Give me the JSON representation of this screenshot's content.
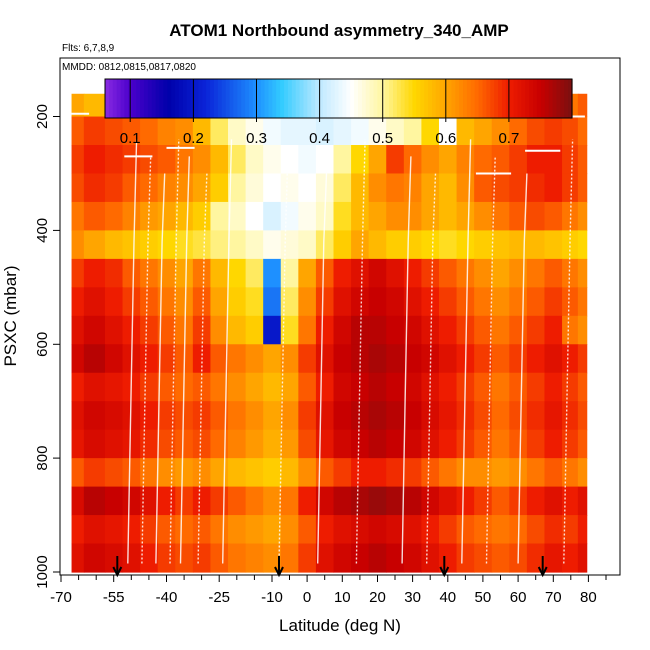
{
  "chart_data": {
    "type": "heatmap",
    "title": "ATOM1 Northbound asymmetry_340_AMP",
    "subtitle_flights": "Flts: 6,7,8,9",
    "subtitle_dates": "MMDD: 0812,0815,0817,0820",
    "xlabel": "Latitude (deg N)",
    "ylabel": "PSXC (mbar)",
    "xlim": [
      -70,
      85
    ],
    "ylim": [
      1000,
      120
    ],
    "x_ticks": [
      -70,
      -55,
      -40,
      -25,
      -10,
      0,
      10,
      20,
      30,
      40,
      50,
      60,
      70,
      80
    ],
    "x_tick_labels": [
      "-70",
      "-55",
      "-40",
      "-25",
      "-10",
      "0",
      "10",
      "20",
      "30",
      "40",
      "50",
      "60",
      "70",
      "80"
    ],
    "x_minor_ticks": [
      -65,
      -60,
      -50,
      -45,
      -35,
      -30,
      -20,
      -15,
      -5,
      5,
      15,
      25,
      35,
      45,
      55,
      65,
      75,
      85
    ],
    "y_ticks": [
      200,
      400,
      600,
      800,
      1000
    ],
    "y_tick_labels": [
      "200",
      "400",
      "600",
      "800",
      "1000"
    ],
    "colorbar": {
      "range": [
        0.06,
        0.8
      ],
      "ticks": [
        0.1,
        0.2,
        0.3,
        0.4,
        0.5,
        0.6,
        0.7
      ],
      "tick_labels": [
        "0.1",
        "0.2",
        "0.3",
        "0.4",
        "0.5",
        "0.6",
        "0.7"
      ],
      "stops": [
        {
          "v": 0.06,
          "c": "#8a2be2"
        },
        {
          "v": 0.1,
          "c": "#4b00cc"
        },
        {
          "v": 0.16,
          "c": "#0000aa"
        },
        {
          "v": 0.22,
          "c": "#0a24d8"
        },
        {
          "v": 0.3,
          "c": "#1e90ff"
        },
        {
          "v": 0.34,
          "c": "#33ccff"
        },
        {
          "v": 0.4,
          "c": "#bfe9ff"
        },
        {
          "v": 0.45,
          "c": "#ffffff"
        },
        {
          "v": 0.5,
          "c": "#fff6a0"
        },
        {
          "v": 0.55,
          "c": "#ffd700"
        },
        {
          "v": 0.6,
          "c": "#ffa500"
        },
        {
          "v": 0.65,
          "c": "#ff6a00"
        },
        {
          "v": 0.7,
          "c": "#ee1c00"
        },
        {
          "v": 0.75,
          "c": "#c80000"
        },
        {
          "v": 0.8,
          "c": "#7a1010"
        }
      ]
    },
    "lat_bins": [
      -67,
      -60,
      -55,
      -50,
      -45,
      -40,
      -35,
      -30,
      -25,
      -20,
      -15,
      -10,
      -5,
      0,
      5,
      10,
      15,
      20,
      25,
      30,
      35,
      40,
      45,
      50,
      55,
      60,
      65,
      70,
      75,
      79
    ],
    "pressure_levels": [
      175,
      225,
      275,
      325,
      375,
      425,
      475,
      525,
      575,
      625,
      675,
      725,
      775,
      825,
      875,
      925,
      975
    ],
    "values_by_level": [
      [
        0.6,
        0.58,
        0.57,
        0.56,
        0.55,
        0.54,
        0.53,
        0.52,
        0.5,
        0.48,
        0.46,
        0.45,
        0.44,
        0.44,
        0.43,
        0.44,
        0.45,
        0.46,
        0.47,
        0.48,
        0.49,
        0.5,
        0.52,
        0.54,
        0.56,
        0.58,
        0.6,
        0.62,
        0.64,
        0.66
      ],
      [
        0.66,
        0.68,
        0.67,
        0.66,
        0.65,
        0.63,
        0.62,
        0.58,
        0.52,
        0.48,
        0.46,
        0.44,
        0.43,
        0.43,
        0.42,
        0.43,
        0.44,
        0.46,
        0.48,
        0.5,
        0.55,
        0.45,
        0.58,
        0.6,
        0.62,
        0.65,
        0.67,
        0.68,
        0.67,
        0.65
      ],
      [
        0.68,
        0.7,
        0.69,
        0.68,
        0.67,
        0.66,
        0.64,
        0.62,
        0.58,
        0.52,
        0.48,
        0.46,
        0.45,
        0.44,
        0.45,
        0.5,
        0.55,
        0.6,
        0.68,
        0.65,
        0.62,
        0.6,
        0.63,
        0.65,
        0.66,
        0.68,
        0.7,
        0.7,
        0.68,
        0.66
      ],
      [
        0.67,
        0.69,
        0.68,
        0.66,
        0.65,
        0.63,
        0.62,
        0.6,
        0.56,
        0.5,
        0.47,
        0.45,
        0.46,
        0.45,
        0.47,
        0.52,
        0.58,
        0.62,
        0.64,
        0.63,
        0.6,
        0.58,
        0.62,
        0.66,
        0.67,
        0.68,
        0.69,
        0.7,
        0.68,
        0.66
      ],
      [
        0.64,
        0.66,
        0.65,
        0.63,
        0.61,
        0.6,
        0.58,
        0.56,
        0.5,
        0.48,
        0.45,
        0.42,
        0.44,
        0.46,
        0.48,
        0.54,
        0.58,
        0.6,
        0.62,
        0.62,
        0.6,
        0.58,
        0.6,
        0.62,
        0.64,
        0.66,
        0.67,
        0.66,
        0.64,
        0.62
      ],
      [
        0.62,
        0.6,
        0.58,
        0.57,
        0.56,
        0.55,
        0.54,
        0.53,
        0.51,
        0.5,
        0.48,
        0.46,
        0.47,
        0.48,
        0.52,
        0.56,
        0.6,
        0.58,
        0.56,
        0.56,
        0.55,
        0.54,
        0.55,
        0.56,
        0.57,
        0.58,
        0.58,
        0.57,
        0.56,
        0.55
      ],
      [
        0.68,
        0.7,
        0.69,
        0.66,
        0.64,
        0.62,
        0.6,
        0.64,
        0.58,
        0.55,
        0.52,
        0.3,
        0.5,
        0.6,
        0.66,
        0.7,
        0.72,
        0.74,
        0.72,
        0.7,
        0.68,
        0.66,
        0.64,
        0.62,
        0.6,
        0.62,
        0.64,
        0.66,
        0.64,
        0.62
      ],
      [
        0.7,
        0.72,
        0.7,
        0.68,
        0.66,
        0.64,
        0.62,
        0.66,
        0.6,
        0.56,
        0.54,
        0.28,
        0.52,
        0.62,
        0.68,
        0.72,
        0.74,
        0.75,
        0.74,
        0.72,
        0.7,
        0.68,
        0.66,
        0.64,
        0.62,
        0.64,
        0.66,
        0.68,
        0.66,
        0.64
      ],
      [
        0.72,
        0.74,
        0.72,
        0.7,
        0.68,
        0.66,
        0.64,
        0.68,
        0.62,
        0.58,
        0.56,
        0.2,
        0.54,
        0.64,
        0.7,
        0.74,
        0.76,
        0.76,
        0.75,
        0.74,
        0.72,
        0.7,
        0.68,
        0.66,
        0.64,
        0.66,
        0.68,
        0.7,
        0.64,
        0.62
      ],
      [
        0.74,
        0.76,
        0.74,
        0.72,
        0.7,
        0.68,
        0.66,
        0.7,
        0.66,
        0.64,
        0.62,
        0.6,
        0.62,
        0.68,
        0.72,
        0.75,
        0.76,
        0.77,
        0.76,
        0.75,
        0.74,
        0.72,
        0.7,
        0.68,
        0.66,
        0.68,
        0.7,
        0.72,
        0.7,
        0.68
      ],
      [
        0.7,
        0.72,
        0.71,
        0.7,
        0.68,
        0.66,
        0.65,
        0.66,
        0.64,
        0.62,
        0.6,
        0.58,
        0.6,
        0.66,
        0.7,
        0.74,
        0.75,
        0.76,
        0.75,
        0.74,
        0.72,
        0.7,
        0.68,
        0.66,
        0.64,
        0.66,
        0.68,
        0.7,
        0.68,
        0.66
      ],
      [
        0.72,
        0.74,
        0.73,
        0.72,
        0.7,
        0.68,
        0.67,
        0.68,
        0.66,
        0.64,
        0.62,
        0.6,
        0.62,
        0.68,
        0.72,
        0.75,
        0.76,
        0.77,
        0.76,
        0.75,
        0.73,
        0.71,
        0.69,
        0.67,
        0.65,
        0.67,
        0.69,
        0.71,
        0.69,
        0.67
      ],
      [
        0.71,
        0.73,
        0.72,
        0.71,
        0.69,
        0.67,
        0.66,
        0.67,
        0.65,
        0.63,
        0.61,
        0.59,
        0.61,
        0.67,
        0.71,
        0.74,
        0.75,
        0.76,
        0.75,
        0.74,
        0.72,
        0.7,
        0.68,
        0.66,
        0.64,
        0.66,
        0.68,
        0.7,
        0.68,
        0.66
      ],
      [
        0.66,
        0.68,
        0.67,
        0.66,
        0.64,
        0.62,
        0.61,
        0.62,
        0.6,
        0.58,
        0.57,
        0.56,
        0.58,
        0.62,
        0.66,
        0.68,
        0.7,
        0.7,
        0.69,
        0.68,
        0.66,
        0.64,
        0.62,
        0.62,
        0.61,
        0.62,
        0.64,
        0.66,
        0.64,
        0.62
      ],
      [
        0.73,
        0.76,
        0.75,
        0.74,
        0.72,
        0.7,
        0.68,
        0.7,
        0.68,
        0.66,
        0.64,
        0.62,
        0.64,
        0.7,
        0.74,
        0.76,
        0.77,
        0.78,
        0.77,
        0.76,
        0.74,
        0.72,
        0.7,
        0.68,
        0.66,
        0.68,
        0.7,
        0.72,
        0.7,
        0.72
      ],
      [
        0.7,
        0.72,
        0.71,
        0.7,
        0.68,
        0.66,
        0.65,
        0.66,
        0.64,
        0.62,
        0.61,
        0.6,
        0.62,
        0.66,
        0.7,
        0.72,
        0.73,
        0.74,
        0.73,
        0.72,
        0.7,
        0.68,
        0.66,
        0.65,
        0.64,
        0.65,
        0.67,
        0.69,
        0.68,
        0.7
      ],
      [
        0.72,
        0.74,
        0.73,
        0.72,
        0.7,
        0.68,
        0.67,
        0.68,
        0.66,
        0.64,
        0.63,
        0.62,
        0.64,
        0.68,
        0.72,
        0.74,
        0.75,
        0.76,
        0.75,
        0.74,
        0.72,
        0.7,
        0.68,
        0.67,
        0.66,
        0.67,
        0.69,
        0.71,
        0.7,
        0.72
      ]
    ],
    "cloud_columns_lat": [
      -51,
      -47,
      -43,
      -39,
      -36,
      -31,
      -24,
      -8,
      3,
      14,
      27,
      34,
      44,
      51,
      60,
      73
    ],
    "arrow_latitudes": [
      -54,
      -8,
      39,
      67
    ],
    "colors": {
      "profile_line": "#ffffff",
      "arrow": "#000000",
      "axis": "#000000"
    }
  }
}
